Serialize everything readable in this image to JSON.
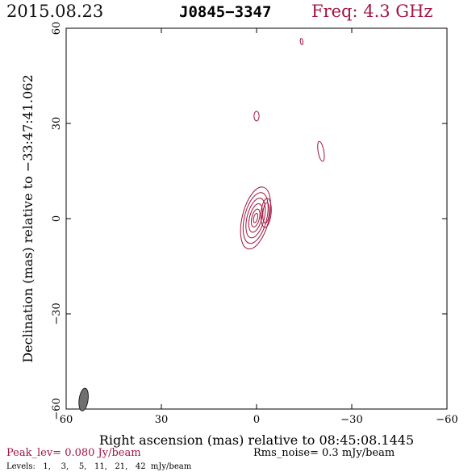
{
  "header": {
    "date": "2015.08.23",
    "source": "J0845−3347",
    "frequency": "Freq: 4.3 GHz"
  },
  "chart_data": {
    "type": "contour",
    "xlabel": "Right ascension (mas) relative to 08:45:08.1445",
    "ylabel": "Declination (mas) relative to −33:47:41.062",
    "xlim": [
      60,
      -60
    ],
    "ylim": [
      -60,
      60
    ],
    "x_ticks": [
      "60",
      "30",
      "0",
      "−30",
      "−60"
    ],
    "y_ticks": [
      "−60",
      "−30",
      "0",
      "30",
      "60"
    ],
    "x_tick_values": [
      60,
      30,
      0,
      -30,
      -60
    ],
    "y_tick_values": [
      -60,
      -30,
      0,
      30,
      60
    ],
    "contour_color": "#a01640",
    "beam_color": "#707070",
    "beam": {
      "x": 54.5,
      "y": -57.0,
      "major": 3.6,
      "minor": 1.4,
      "pa_deg": 8
    },
    "components": [
      {
        "x": 0.3,
        "y": 0.2,
        "levels": [
          {
            "rx": 4.2,
            "ry": 10.0,
            "tilt": 14
          },
          {
            "rx": 3.5,
            "ry": 8.2,
            "tilt": 14
          },
          {
            "rx": 2.7,
            "ry": 6.4,
            "tilt": 14
          },
          {
            "rx": 1.9,
            "ry": 4.6,
            "tilt": 14
          },
          {
            "rx": 1.2,
            "ry": 2.9,
            "tilt": 14
          },
          {
            "rx": 0.6,
            "ry": 1.5,
            "tilt": 14
          }
        ]
      },
      {
        "x": -3.0,
        "y": 1.8,
        "levels": [
          {
            "rx": 1.6,
            "ry": 4.6,
            "tilt": 5
          },
          {
            "rx": 1.0,
            "ry": 3.2,
            "tilt": 5
          }
        ]
      },
      {
        "x": 0.0,
        "y": 32.3,
        "levels": [
          {
            "rx": 0.8,
            "ry": 1.5,
            "tilt": 0
          }
        ]
      },
      {
        "x": -20.3,
        "y": 21.2,
        "levels": [
          {
            "rx": 0.9,
            "ry": 3.2,
            "tilt": -10
          }
        ]
      },
      {
        "x": -14.2,
        "y": 55.8,
        "levels": [
          {
            "rx": 0.4,
            "ry": 1.0,
            "tilt": -10
          }
        ]
      }
    ]
  },
  "footer": {
    "peak": "Peak_lev=  0.080 Jy/beam",
    "rms": "Rms_noise=   0.3 mJy/beam",
    "levels": "Levels:   1,    3,    5,   11,   21,   42  mJy/beam"
  }
}
